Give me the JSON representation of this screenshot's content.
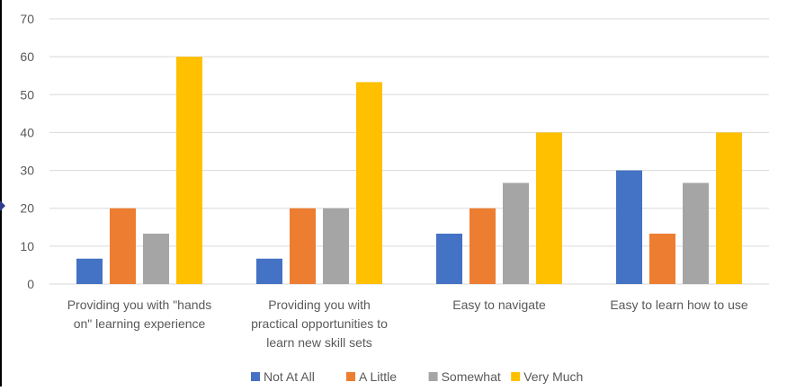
{
  "chart_data": {
    "type": "bar",
    "title": "",
    "xlabel": "",
    "ylabel": "",
    "ylim": [
      0,
      70
    ],
    "yticks": [
      0,
      10,
      20,
      30,
      40,
      50,
      60,
      70
    ],
    "grid": true,
    "legend_position": "bottom",
    "categories": [
      [
        "Providing you with \"hands",
        "on\" learning experience"
      ],
      [
        "Providing you with",
        "practical opportunities to",
        "learn new skill sets"
      ],
      [
        "Easy to navigate"
      ],
      [
        "Easy to learn how to use"
      ]
    ],
    "series": [
      {
        "name": "Not At All",
        "color": "#4472C4",
        "values": [
          6.7,
          6.7,
          13.3,
          30.0
        ]
      },
      {
        "name": "A Little",
        "color": "#ED7D31",
        "values": [
          20.0,
          20.0,
          20.0,
          13.3
        ]
      },
      {
        "name": "Somewhat",
        "color": "#A5A5A5",
        "values": [
          13.3,
          20.0,
          26.7,
          26.7
        ]
      },
      {
        "name": "Very Much",
        "color": "#FFC000",
        "values": [
          60.0,
          53.3,
          40.0,
          40.0
        ]
      }
    ]
  }
}
